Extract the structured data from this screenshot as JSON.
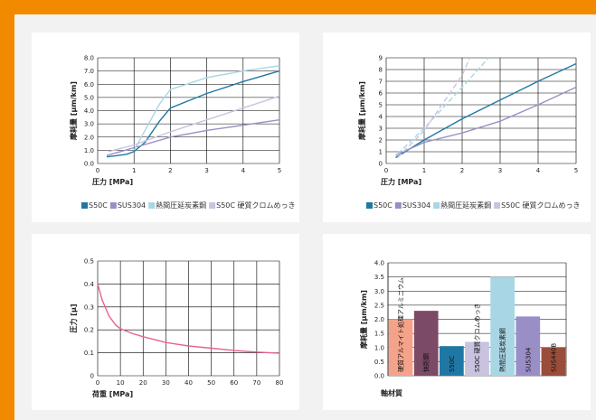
{
  "colors": {
    "frame": "#f28a00",
    "background": "#f2f2f2",
    "s50c": "#1f78a4",
    "sus304": "#9a8ec7",
    "hot_rolled": "#a9d6e5",
    "chrome": "#c9c3e0",
    "pressure_curve": "#e8638a",
    "alumite": "#f4a38a",
    "gunmetal": "#7b4a66",
    "sus440b": "#9a4d3a"
  },
  "chart_data": [
    {
      "type": "line",
      "xlabel": "圧力 [MPa]",
      "ylabel": "摩耗量 [μm/km]",
      "xlim": [
        0,
        5
      ],
      "ylim": [
        0,
        8
      ],
      "xticks": [
        "0",
        "1",
        "2",
        "3",
        "4",
        "5"
      ],
      "yticks": [
        "0.0",
        "1.0",
        "2.0",
        "3.0",
        "4.0",
        "5.0",
        "6.0",
        "7.0",
        "8.0"
      ],
      "grid": true,
      "legend_position": "bottom",
      "series": [
        {
          "name": "S50C",
          "color": "#1f78a4",
          "dashed": false,
          "x": [
            0.25,
            0.8,
            1.0,
            1.3,
            1.7,
            2.0,
            3.0,
            4.0,
            5.0
          ],
          "y": [
            0.5,
            0.7,
            0.9,
            1.6,
            3.2,
            4.2,
            5.3,
            6.2,
            7.0
          ]
        },
        {
          "name": "SUS304",
          "color": "#9a8ec7",
          "dashed": false,
          "x": [
            0.25,
            1.0,
            2.0,
            3.0,
            4.0,
            5.0
          ],
          "y": [
            0.6,
            1.2,
            2.0,
            2.5,
            2.9,
            3.3
          ]
        },
        {
          "name": "熱間圧延炭素鋼",
          "color": "#a9d6e5",
          "dashed": false,
          "x": [
            1.0,
            1.3,
            1.7,
            2.0,
            3.0,
            4.0,
            5.0
          ],
          "y": [
            1.0,
            2.5,
            4.5,
            5.6,
            6.5,
            7.0,
            7.4
          ]
        },
        {
          "name": "S50C 硬質クロムめっき",
          "color": "#c9c3e0",
          "dashed": false,
          "x": [
            0.3,
            1.0,
            2.0,
            3.0,
            4.0,
            5.0
          ],
          "y": [
            0.9,
            1.4,
            2.4,
            3.3,
            4.2,
            5.1
          ]
        }
      ]
    },
    {
      "type": "line",
      "xlabel": "圧力 [MPa]",
      "ylabel": "摩耗量 [μm/km]",
      "xlim": [
        0,
        5
      ],
      "ylim": [
        0,
        9
      ],
      "xticks": [
        "0",
        "1",
        "2",
        "3",
        "4",
        "5"
      ],
      "yticks": [
        "0",
        "1",
        "2",
        "3",
        "4",
        "5",
        "6",
        "7",
        "8",
        "9"
      ],
      "grid": true,
      "legend_position": "bottom",
      "series": [
        {
          "name": "S50C",
          "color": "#1f78a4",
          "dashed": false,
          "x": [
            0.25,
            1.0,
            2.0,
            3.0,
            4.0,
            5.0
          ],
          "y": [
            0.5,
            2.0,
            3.8,
            5.4,
            7.0,
            8.5
          ]
        },
        {
          "name": "SUS304",
          "color": "#9a8ec7",
          "dashed": false,
          "x": [
            0.25,
            1.0,
            2.0,
            3.0,
            4.0,
            5.0
          ],
          "y": [
            0.7,
            1.8,
            2.6,
            3.6,
            5.0,
            6.5
          ]
        },
        {
          "name": "熱間圧延炭素鋼",
          "color": "#a9d6e5",
          "dashed": true,
          "x": [
            0.3,
            1.0,
            2.0,
            2.7
          ],
          "y": [
            0.8,
            3.0,
            6.5,
            9.0
          ]
        },
        {
          "name": "S50C 硬質クロムめっき",
          "color": "#c9c3e0",
          "dashed": true,
          "x": [
            0.3,
            1.0,
            2.0,
            2.2
          ],
          "y": [
            0.5,
            2.8,
            7.5,
            9.0
          ]
        }
      ]
    },
    {
      "type": "line",
      "xlabel": "荷重 [MPa]",
      "ylabel": "圧力 [μ]",
      "xlim": [
        0,
        80
      ],
      "ylim": [
        0,
        0.5
      ],
      "xticks": [
        "0",
        "10",
        "20",
        "30",
        "40",
        "50",
        "60",
        "70",
        "80"
      ],
      "yticks": [
        "0",
        "0.1",
        "0.2",
        "0.3",
        "0.4",
        "0.5"
      ],
      "grid": true,
      "series": [
        {
          "color": "#e8638a",
          "x": [
            0,
            2,
            5,
            8,
            10,
            15,
            20,
            30,
            40,
            50,
            60,
            70,
            80
          ],
          "y": [
            0.4,
            0.33,
            0.26,
            0.22,
            0.205,
            0.185,
            0.17,
            0.145,
            0.13,
            0.12,
            0.11,
            0.103,
            0.098
          ]
        }
      ]
    },
    {
      "type": "bar",
      "xlabel": "軸材質",
      "ylabel": "摩耗量 [μm/km]",
      "ylim": [
        0,
        4.0
      ],
      "yticks": [
        "0.0",
        "0.5",
        "1.0",
        "1.5",
        "2.0",
        "2.5",
        "3.0",
        "3.5",
        "4.0"
      ],
      "grid": true,
      "categories": [
        "硬質アルマイト処理アルミニウム",
        "快削鋼",
        "S50C",
        "S50C 硬質クロムめっき",
        "熱間圧延炭素鋼",
        "SUS304",
        "SUS440B"
      ],
      "values": [
        2.0,
        2.3,
        1.05,
        1.2,
        3.5,
        2.1,
        1.0
      ],
      "bar_colors": [
        "#f4a38a",
        "#7b4a66",
        "#1f78a4",
        "#c9c3e0",
        "#a9d6e5",
        "#9a8ec7",
        "#9a4d3a"
      ]
    }
  ]
}
